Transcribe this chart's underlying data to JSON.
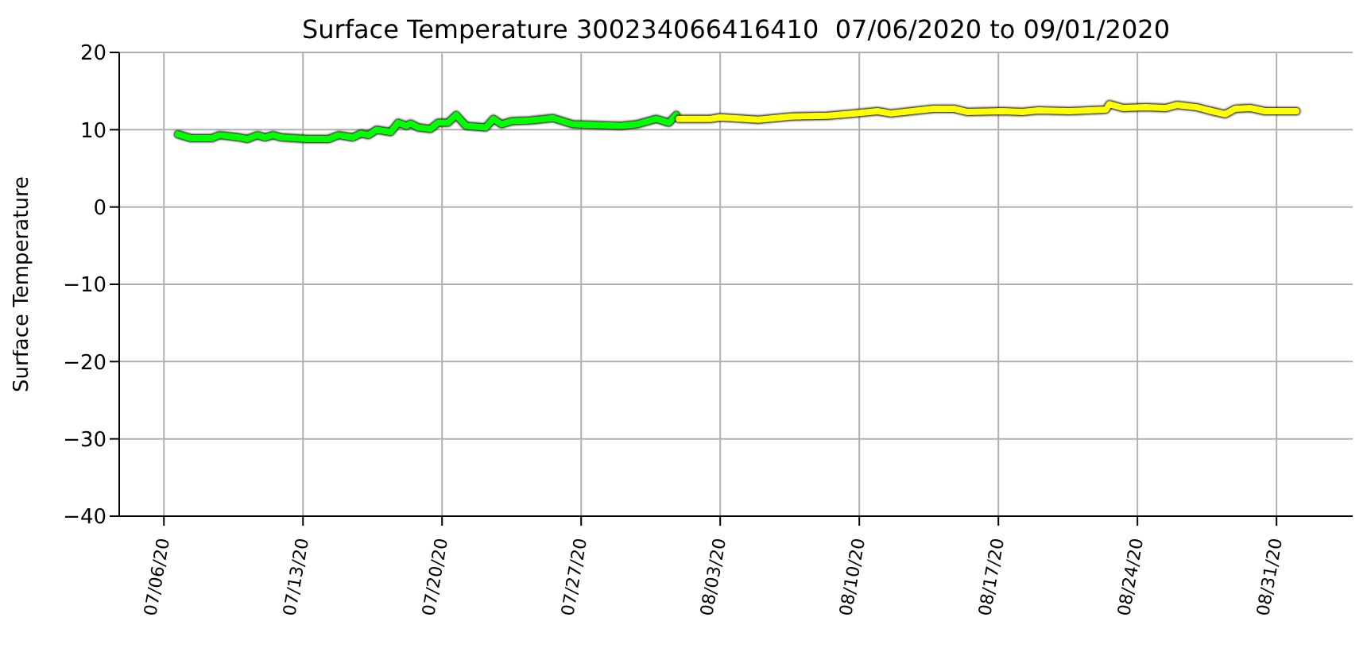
{
  "chart_data": {
    "type": "line",
    "title": "Surface Temperature 300234066416410  07/06/2020 to 09/01/2020",
    "ylabel": "Surface Temperature",
    "xlim": [
      "2020-07-03T18:00",
      "2020-09-03T20:00"
    ],
    "xticks": [
      {
        "value": "2020-07-06",
        "label": "07/06/20"
      },
      {
        "value": "2020-07-13",
        "label": "07/13/20"
      },
      {
        "value": "2020-07-20",
        "label": "07/20/20"
      },
      {
        "value": "2020-07-27",
        "label": "07/27/20"
      },
      {
        "value": "2020-08-03",
        "label": "08/03/20"
      },
      {
        "value": "2020-08-10",
        "label": "08/10/20"
      },
      {
        "value": "2020-08-17",
        "label": "08/17/20"
      },
      {
        "value": "2020-08-24",
        "label": "08/24/20"
      },
      {
        "value": "2020-08-31",
        "label": "08/31/20"
      }
    ],
    "ylim": [
      -40,
      20
    ],
    "yticks": [
      -40,
      -30,
      -20,
      -10,
      0,
      10,
      20
    ],
    "grid": true,
    "series": [
      {
        "color": "#00ff00",
        "x": [
          "2020-07-06T17:00",
          "2020-07-07T09:00",
          "2020-07-08T10:00",
          "2020-07-08T19:00",
          "2020-07-09T19:00",
          "2020-07-10T05:00",
          "2020-07-10T17:00",
          "2020-07-11T02:00",
          "2020-07-11T12:00",
          "2020-07-11T22:00",
          "2020-07-13T05:00",
          "2020-07-14T07:00",
          "2020-07-14T19:00",
          "2020-07-15T12:00",
          "2020-07-15T22:00",
          "2020-07-16T07:00",
          "2020-07-16T17:00",
          "2020-07-17T10:00",
          "2020-07-17T19:00",
          "2020-07-18T05:00",
          "2020-07-18T10:00",
          "2020-07-18T19:00",
          "2020-07-19T10:00",
          "2020-07-19T19:00",
          "2020-07-20T07:00",
          "2020-07-20T17:00",
          "2020-07-21T05:00",
          "2020-07-22T05:00",
          "2020-07-22T14:00",
          "2020-07-23T00:00",
          "2020-07-23T12:00",
          "2020-07-24T10:00",
          "2020-07-25T14:00",
          "2020-07-26T14:00",
          "2020-07-29T00:00",
          "2020-07-29T19:00",
          "2020-07-30T19:00",
          "2020-07-31T10:00",
          "2020-07-31T19:00"
        ],
        "values": [
          9.4,
          8.9,
          8.9,
          9.3,
          9.0,
          8.8,
          9.3,
          9.0,
          9.3,
          9.0,
          8.8,
          8.8,
          9.3,
          9.0,
          9.5,
          9.3,
          10.0,
          9.7,
          10.9,
          10.5,
          10.8,
          10.3,
          10.1,
          10.9,
          10.9,
          11.9,
          10.5,
          10.3,
          11.4,
          10.7,
          11.1,
          11.2,
          11.5,
          10.7,
          10.5,
          10.7,
          11.4,
          10.9,
          11.9
        ]
      },
      {
        "color": "#ffff00",
        "x": [
          "2020-07-31T22:00",
          "2020-08-02T12:00",
          "2020-08-03T00:00",
          "2020-08-04T22:00",
          "2020-08-06T14:00",
          "2020-08-08T10:00",
          "2020-08-09T17:00",
          "2020-08-10T22:00",
          "2020-08-11T14:00",
          "2020-08-13T17:00",
          "2020-08-14T19:00",
          "2020-08-15T10:00",
          "2020-08-17T05:00",
          "2020-08-18T05:00",
          "2020-08-19T00:00",
          "2020-08-20T14:00",
          "2020-08-22T10:00",
          "2020-08-22T14:00",
          "2020-08-23T07:00",
          "2020-08-24T10:00",
          "2020-08-25T10:00",
          "2020-08-26T00:00",
          "2020-08-27T00:00",
          "2020-08-27T14:00",
          "2020-08-28T10:00",
          "2020-08-28T22:00",
          "2020-08-29T17:00",
          "2020-08-30T10:00",
          "2020-09-01T00:00"
        ],
        "values": [
          11.4,
          11.4,
          11.6,
          11.3,
          11.7,
          11.8,
          12.1,
          12.4,
          12.1,
          12.7,
          12.7,
          12.3,
          12.4,
          12.3,
          12.5,
          12.4,
          12.6,
          13.3,
          12.8,
          12.9,
          12.8,
          13.2,
          12.9,
          12.5,
          12.0,
          12.7,
          12.8,
          12.4,
          12.4
        ]
      }
    ]
  }
}
